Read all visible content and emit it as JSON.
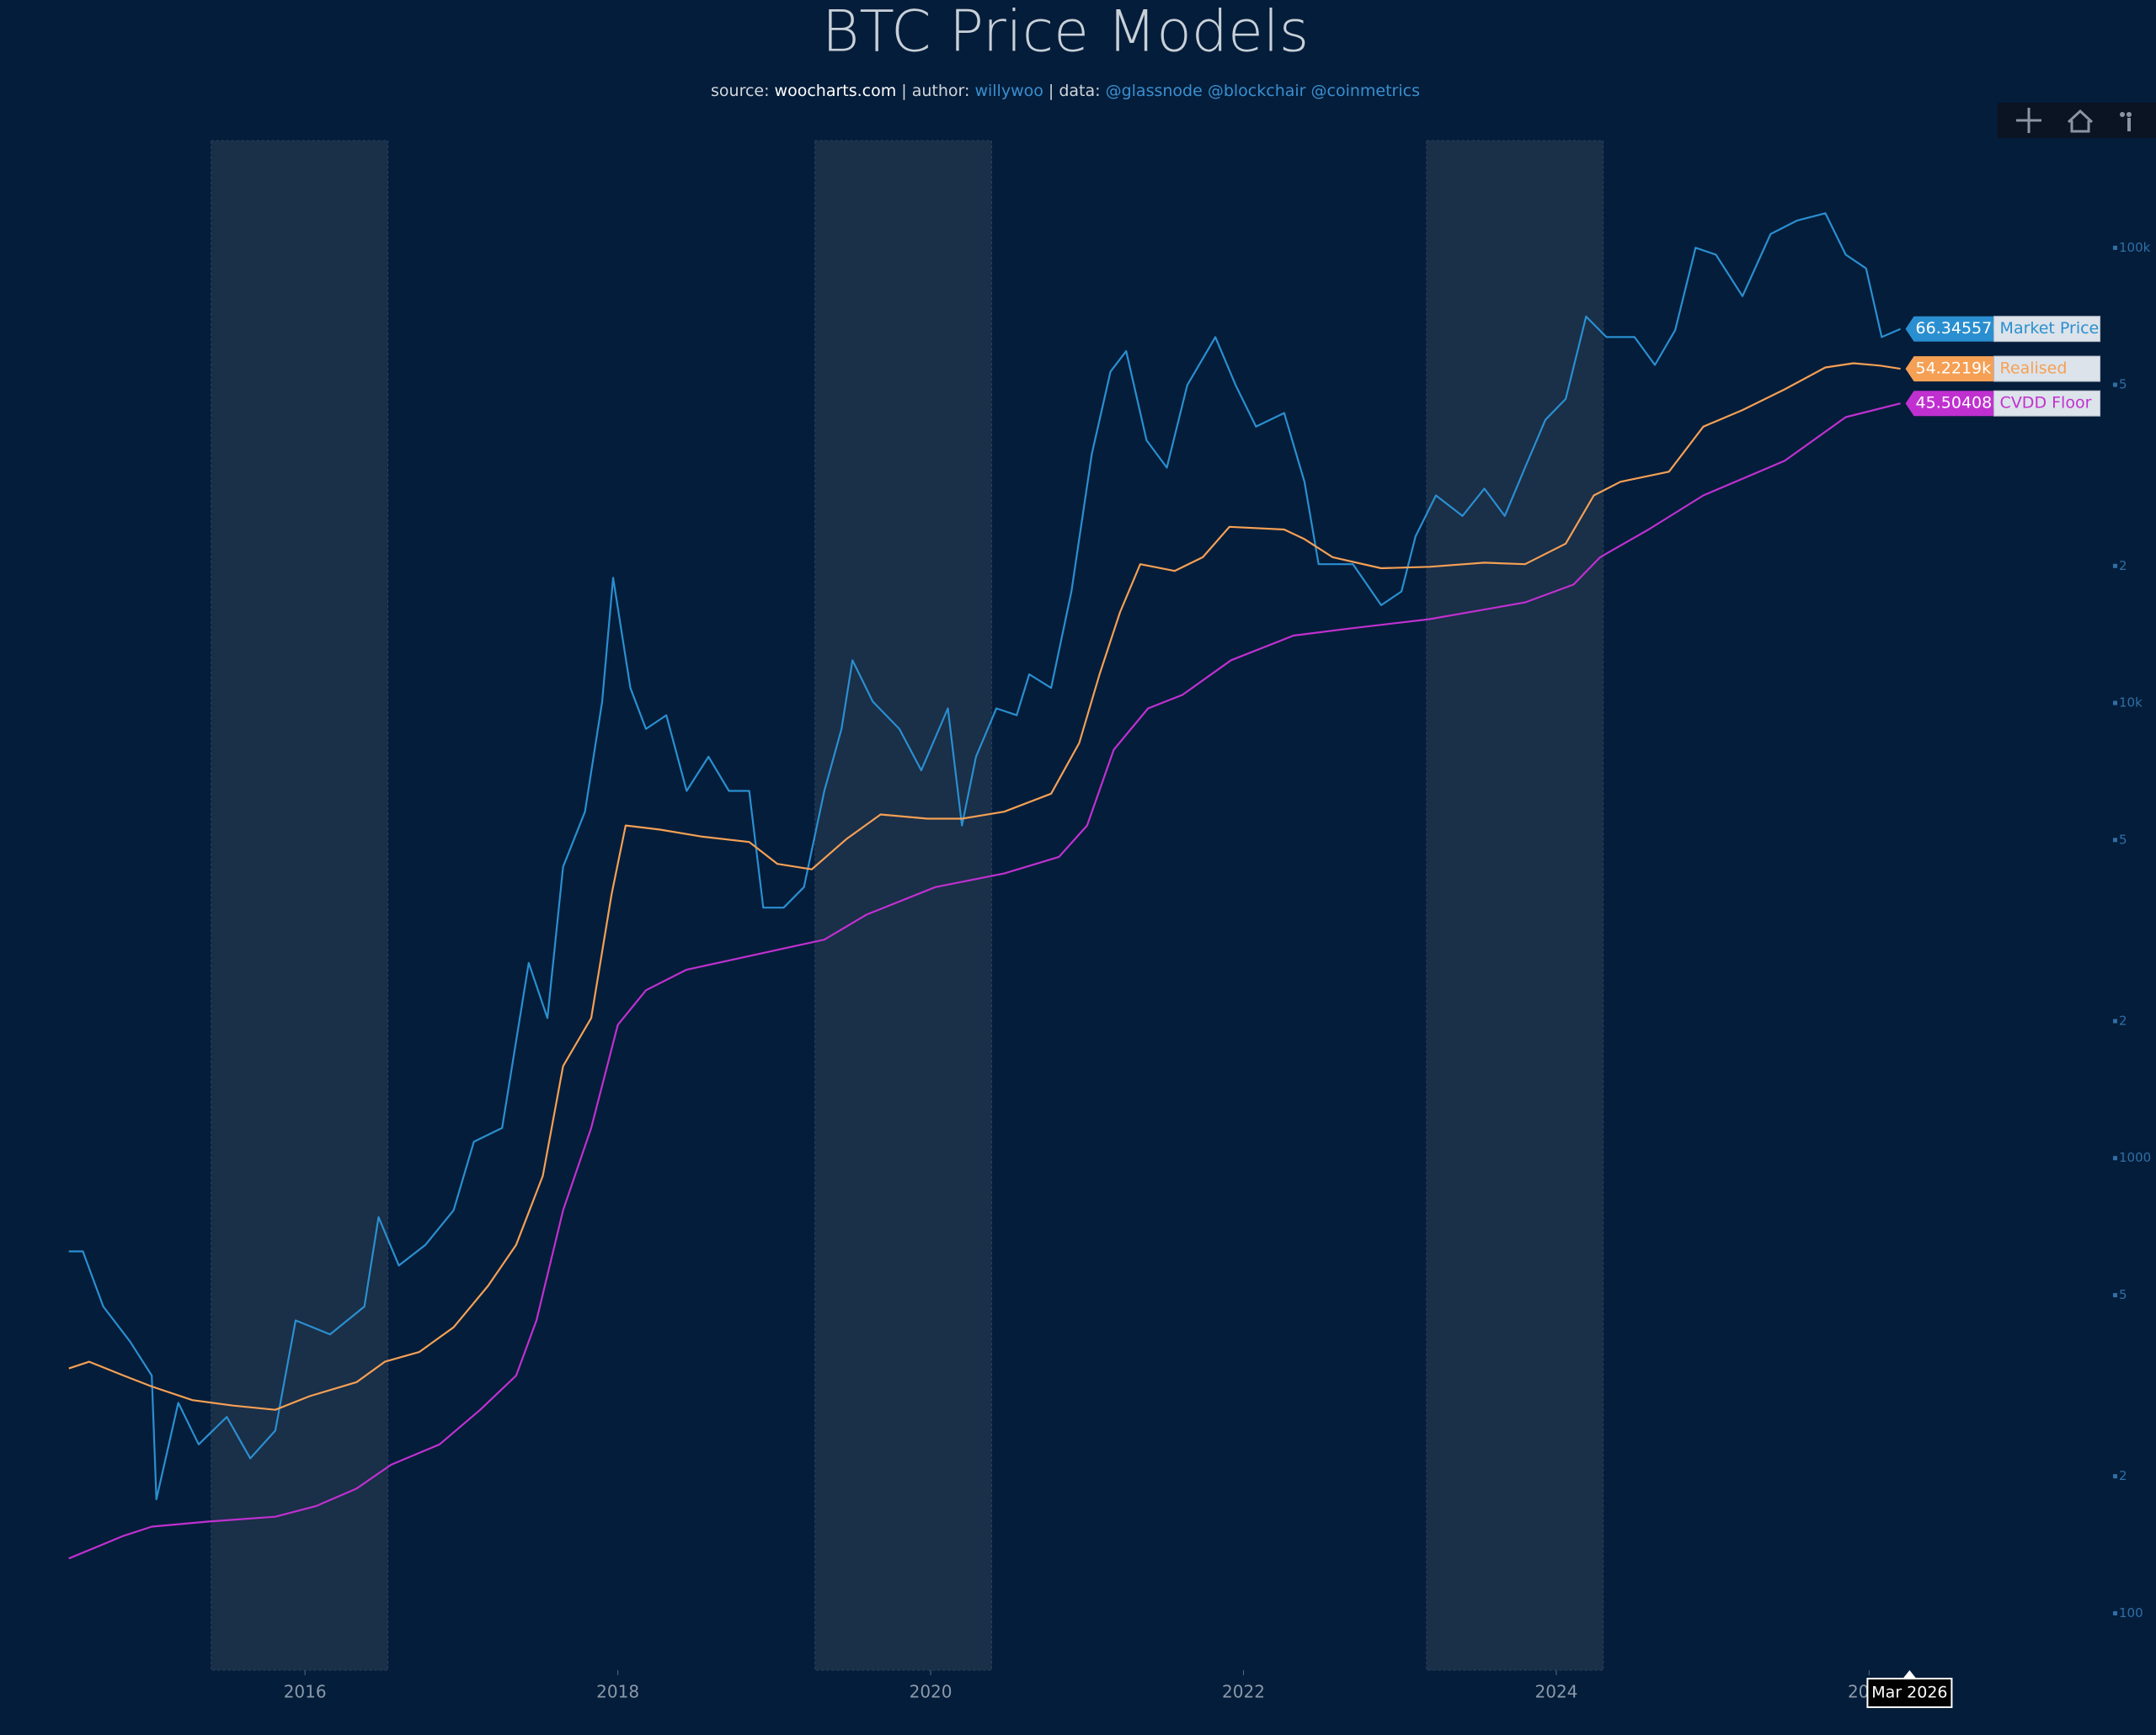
{
  "chart_data": {
    "type": "line",
    "title": "BTC Price Models",
    "subtitle_parts": [
      "source: ",
      "woocharts.com",
      " | author: ",
      "willywoo",
      " | data: ",
      "@glassnode @blockchair @coinmetrics"
    ],
    "log_y": true,
    "grid": false,
    "xlim": [
      2014.05,
      2027.5
    ],
    "ylim": [
      75,
      172000
    ],
    "xticks": [
      2016,
      2018,
      2020,
      2022,
      2024,
      2026
    ],
    "yticks": [
      100,
      {
        "value": 200,
        "label": "2"
      },
      {
        "value": 500,
        "label": "5"
      },
      1000,
      {
        "value": 2000,
        "label": "2"
      },
      {
        "value": 5000,
        "label": "5"
      },
      {
        "value": 10000,
        "label": "10k"
      },
      {
        "value": 20000,
        "label": "2"
      },
      {
        "value": 50000,
        "label": "5"
      },
      {
        "value": 100000,
        "label": "100k"
      }
    ],
    "shaded_regions": [
      [
        2015.4,
        2016.53
      ],
      [
        2019.26,
        2020.39
      ],
      [
        2023.17,
        2024.3
      ]
    ],
    "hover_label": "Mar 2026",
    "series": [
      {
        "name": "Market Price",
        "color": "#2a8fd0",
        "end_label": "66.34557k",
        "x": [
          2014.49,
          2014.58,
          2014.71,
          2014.88,
          2015.02,
          2015.05,
          2015.19,
          2015.32,
          2015.5,
          2015.65,
          2015.81,
          2015.94,
          2016.16,
          2016.38,
          2016.47,
          2016.6,
          2016.77,
          2016.95,
          2017.08,
          2017.26,
          2017.43,
          2017.55,
          2017.65,
          2017.79,
          2017.9,
          2017.97,
          2018.08,
          2018.18,
          2018.31,
          2018.44,
          2018.58,
          2018.71,
          2018.84,
          2018.93,
          2019.06,
          2019.19,
          2019.32,
          2019.43,
          2019.5,
          2019.63,
          2019.8,
          2019.94,
          2020.11,
          2020.2,
          2020.29,
          2020.42,
          2020.55,
          2020.63,
          2020.77,
          2020.9,
          2021.03,
          2021.15,
          2021.25,
          2021.38,
          2021.51,
          2021.64,
          2021.82,
          2021.95,
          2022.08,
          2022.26,
          2022.39,
          2022.48,
          2022.7,
          2022.88,
          2023.01,
          2023.1,
          2023.23,
          2023.4,
          2023.54,
          2023.67,
          2023.8,
          2023.93,
          2024.06,
          2024.19,
          2024.32,
          2024.5,
          2024.63,
          2024.76,
          2024.89,
          2025.02,
          2025.19,
          2025.37,
          2025.54,
          2025.72,
          2025.85,
          2025.98,
          2026.08,
          2026.2
        ],
        "values": [
          624,
          624,
          472,
          396,
          333,
          178,
          290,
          235,
          270,
          219,
          252,
          440,
          410,
          472,
          742,
          581,
          645,
          768,
          1087,
          1165,
          2685,
          2032,
          4365,
          5770,
          10070,
          18840,
          10790,
          8770,
          9400,
          6410,
          7620,
          6410,
          6410,
          3550,
          3550,
          3940,
          6410,
          8770,
          12410,
          10070,
          8770,
          7110,
          9730,
          5380,
          7620,
          9730,
          9400,
          11560,
          10790,
          17580,
          35240,
          53460,
          59300,
          37760,
          32880,
          49890,
          63650,
          49890,
          40460,
          43350,
          30620,
          20180,
          20180,
          16400,
          17580,
          23230,
          28580,
          25760,
          29580,
          25760,
          32880,
          41880,
          46550,
          70630,
          63650,
          63650,
          55300,
          65920,
          100000,
          96600,
          78300,
          107200,
          114800,
          119100,
          96600,
          90100,
          63650,
          66345.57
        ]
      },
      {
        "name": "Realised",
        "color": "#f5a055",
        "end_label": "54.2219k",
        "x": [
          2014.49,
          2014.62,
          2014.84,
          2015.02,
          2015.28,
          2015.54,
          2015.81,
          2016.03,
          2016.33,
          2016.51,
          2016.73,
          2016.95,
          2017.17,
          2017.35,
          2017.52,
          2017.65,
          2017.83,
          2017.96,
          2018.05,
          2018.27,
          2018.53,
          2018.84,
          2019.02,
          2019.24,
          2019.46,
          2019.68,
          2019.98,
          2020.2,
          2020.47,
          2020.77,
          2020.95,
          2021.08,
          2021.21,
          2021.34,
          2021.56,
          2021.74,
          2021.91,
          2022.26,
          2022.39,
          2022.57,
          2022.88,
          2023.19,
          2023.54,
          2023.8,
          2024.06,
          2024.24,
          2024.41,
          2024.72,
          2024.94,
          2025.19,
          2025.46,
          2025.72,
          2025.9,
          2026.07,
          2026.2
        ],
        "values": [
          345,
          357,
          333,
          315,
          294,
          286,
          280,
          300,
          322,
          357,
          375,
          425,
          524,
          645,
          914,
          1593,
          2032,
          3800,
          5380,
          5270,
          5090,
          4950,
          4430,
          4310,
          5020,
          5690,
          5570,
          5570,
          5770,
          6320,
          8170,
          11560,
          15810,
          20180,
          19500,
          20900,
          24380,
          24050,
          22910,
          20900,
          19770,
          19910,
          20330,
          20180,
          22390,
          28580,
          30620,
          32220,
          40460,
          44010,
          48870,
          54580,
          55770,
          55110,
          54221.9
        ]
      },
      {
        "name": "CVDD Floor",
        "color": "#c030d0",
        "end_label": "45.50408k",
        "x": [
          2014.49,
          2014.84,
          2015.02,
          2015.37,
          2015.81,
          2016.07,
          2016.33,
          2016.55,
          2016.86,
          2017.12,
          2017.35,
          2017.48,
          2017.65,
          2017.83,
          2018.0,
          2018.18,
          2018.44,
          2018.84,
          2019.32,
          2019.59,
          2020.03,
          2020.47,
          2020.82,
          2021.0,
          2021.17,
          2021.39,
          2021.61,
          2021.92,
          2022.32,
          2022.67,
          2023.19,
          2023.8,
          2024.11,
          2024.28,
          2024.59,
          2024.94,
          2025.46,
          2025.85,
          2026.2
        ],
        "values": [
          132,
          148,
          155,
          159,
          163,
          172,
          188,
          212,
          235,
          280,
          333,
          440,
          768,
          1165,
          1963,
          2338,
          2594,
          2780,
          3020,
          3427,
          3940,
          4220,
          4590,
          5380,
          7890,
          9730,
          10420,
          12410,
          14060,
          14560,
          15280,
          16630,
          18200,
          20900,
          24050,
          28580,
          34040,
          42460,
          45504.08
        ]
      }
    ]
  }
}
